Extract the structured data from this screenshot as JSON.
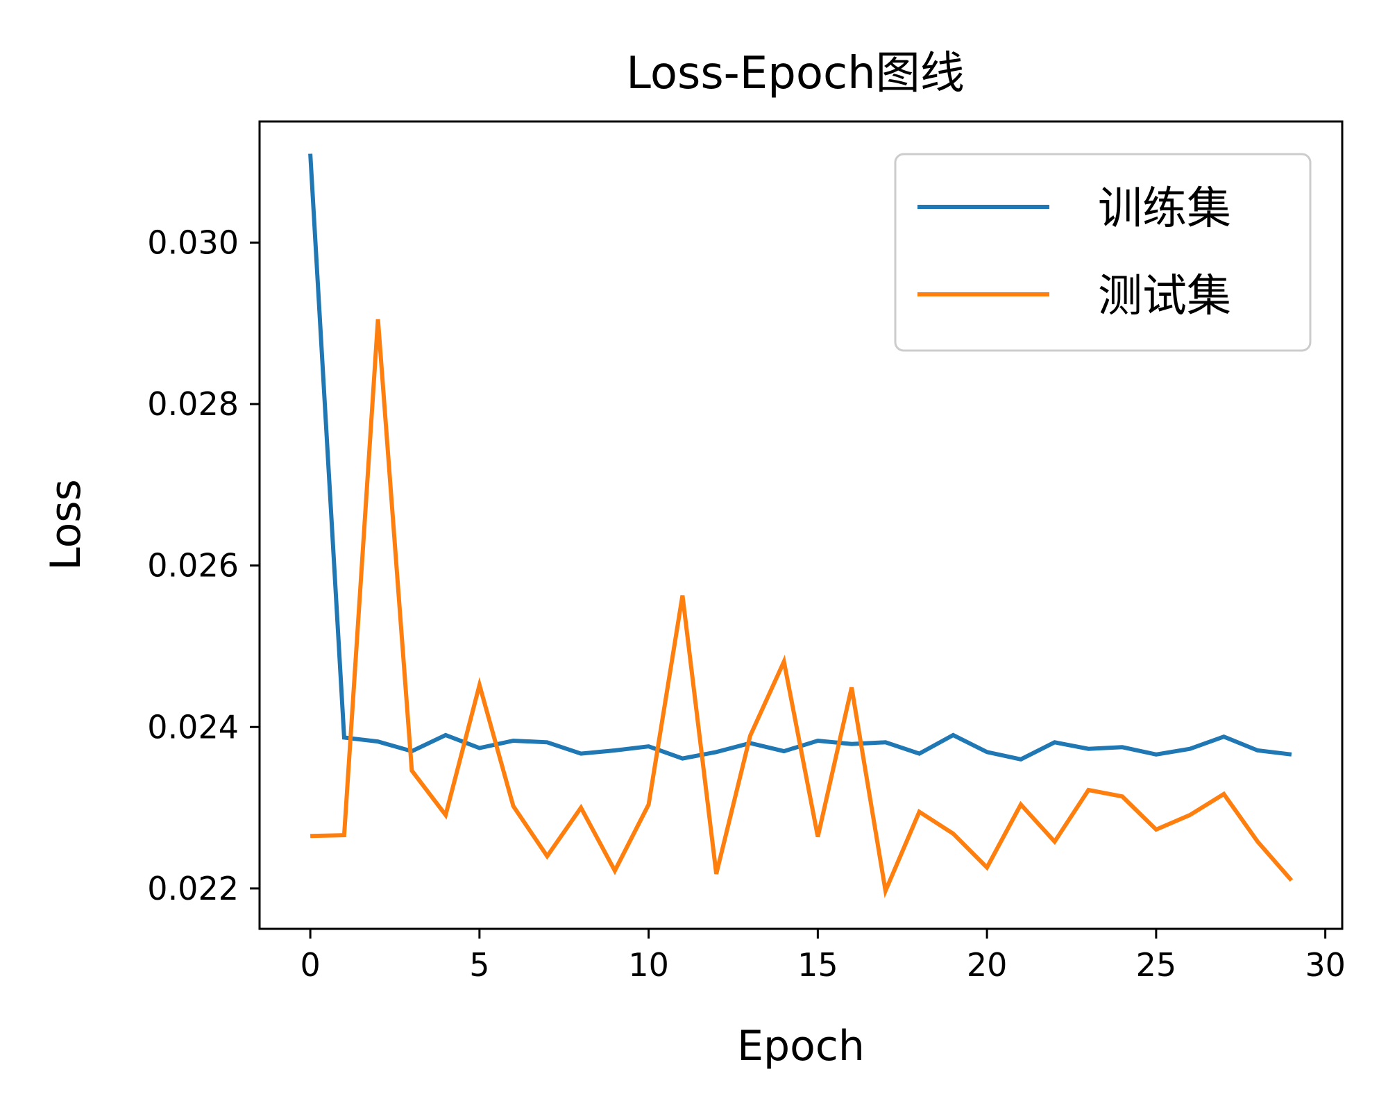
{
  "chart_data": {
    "type": "line",
    "title": "Loss-Epoch图线",
    "xlabel": "Epoch",
    "ylabel": "Loss",
    "xlim": [
      -1.5,
      30.5
    ],
    "ylim": [
      0.0215,
      0.0315
    ],
    "xticks": [
      0,
      5,
      10,
      15,
      20,
      25,
      30
    ],
    "yticks": [
      0.022,
      0.024,
      0.026,
      0.028,
      0.03
    ],
    "ytick_labels": [
      "0.022",
      "0.024",
      "0.026",
      "0.028",
      "0.030"
    ],
    "grid": false,
    "legend_position": "top-right",
    "x": [
      0,
      1,
      2,
      3,
      4,
      5,
      6,
      7,
      8,
      9,
      10,
      11,
      12,
      13,
      14,
      15,
      16,
      17,
      18,
      19,
      20,
      21,
      22,
      23,
      24,
      25,
      26,
      27,
      28,
      29
    ],
    "series": [
      {
        "name": "训练集",
        "color": "#1f77b4",
        "values": [
          0.0311,
          0.02387,
          0.02382,
          0.0237,
          0.0239,
          0.02374,
          0.02383,
          0.02381,
          0.02367,
          0.02371,
          0.02376,
          0.02361,
          0.02369,
          0.0238,
          0.0237,
          0.02383,
          0.02379,
          0.02381,
          0.02367,
          0.0239,
          0.02369,
          0.0236,
          0.02381,
          0.02373,
          0.02375,
          0.02366,
          0.02373,
          0.02388,
          0.02371,
          0.02366
        ]
      },
      {
        "name": "测试集",
        "color": "#ff7f0e",
        "values": [
          0.02265,
          0.02266,
          0.02905,
          0.02346,
          0.02291,
          0.02452,
          0.02302,
          0.0224,
          0.023,
          0.02222,
          0.02304,
          0.02563,
          0.02218,
          0.02389,
          0.02481,
          0.02264,
          0.02449,
          0.02197,
          0.02295,
          0.02268,
          0.02226,
          0.02304,
          0.02258,
          0.02322,
          0.02314,
          0.02273,
          0.02291,
          0.02317,
          0.02258,
          0.0221
        ]
      }
    ]
  }
}
